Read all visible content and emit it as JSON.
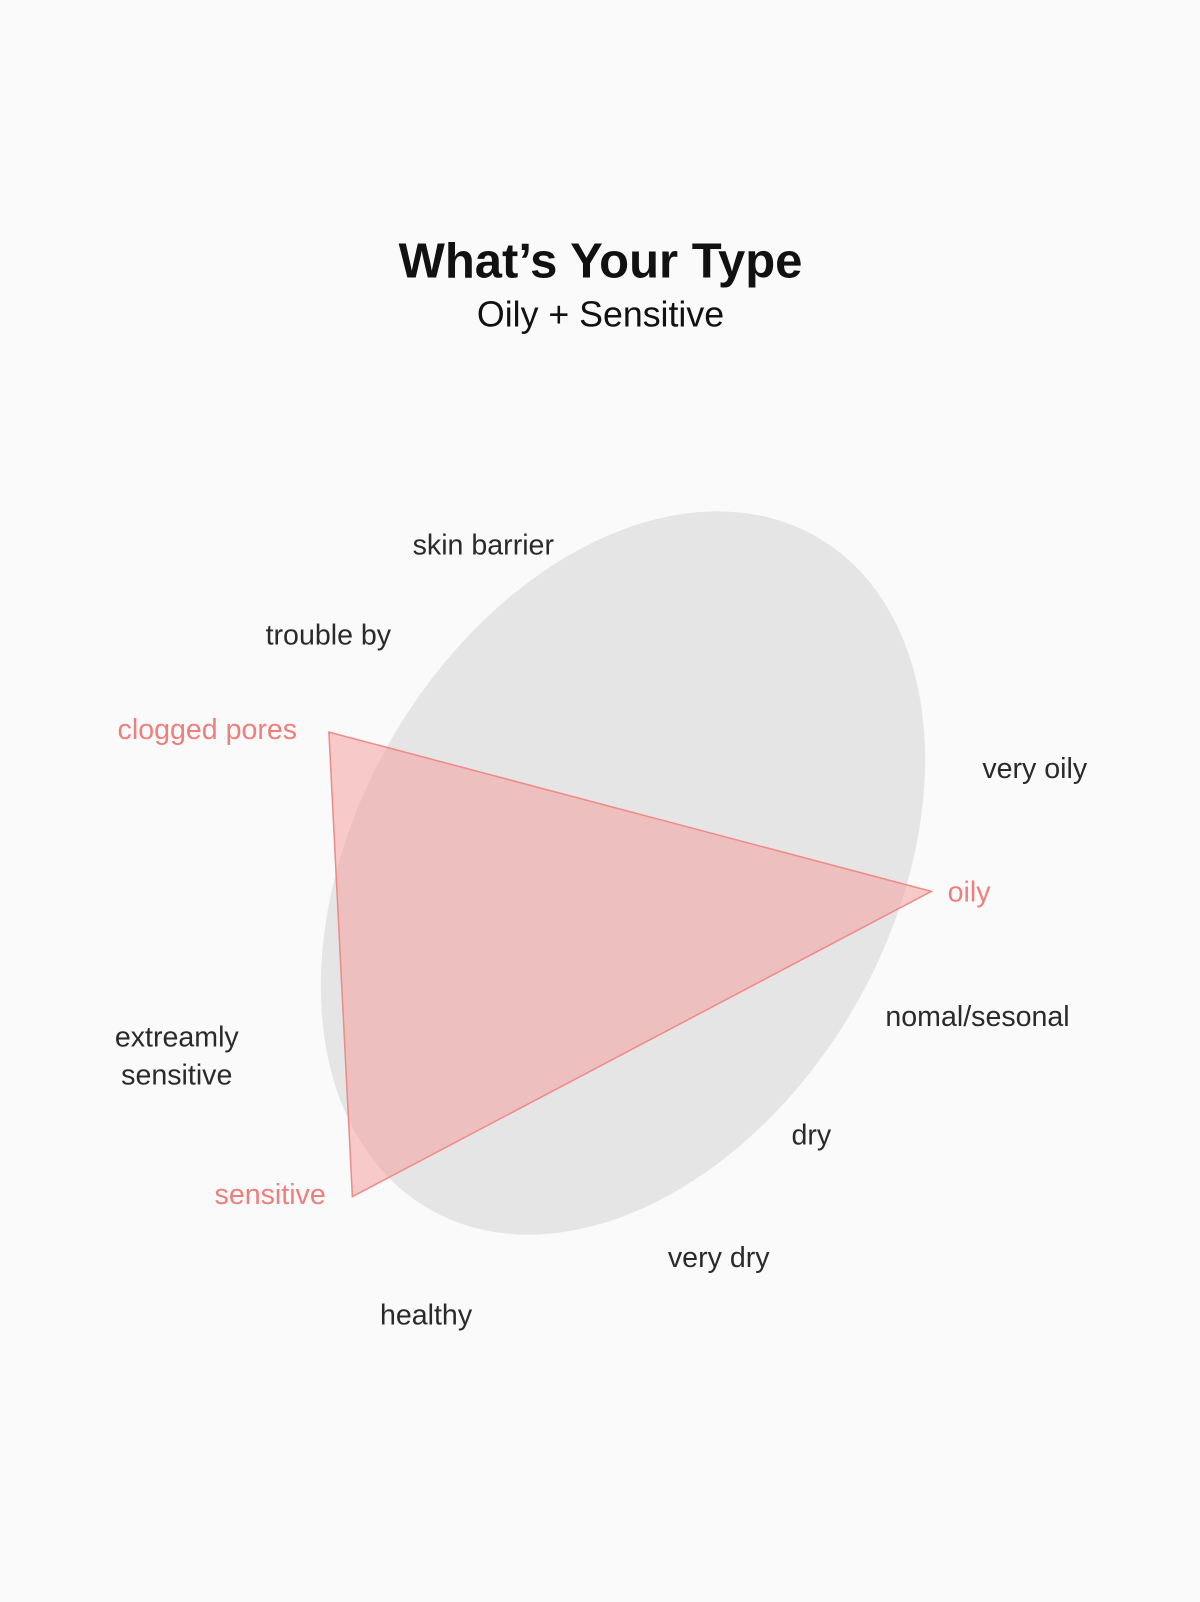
{
  "header": {
    "title": "What’s Your Type",
    "subtitle": "Oily + Sensitive"
  },
  "colors": {
    "background": "#fafafa",
    "ellipse": "#e5e5e5",
    "highlight": "#ee7f7c",
    "triangle_fill": "#f4a3a1"
  },
  "labels": {
    "skin_barrier": "skin barrier",
    "trouble_by": "trouble by",
    "clogged_pores": "clogged pores",
    "very_oily": "very oily",
    "oily": "oily",
    "normal_seasonal": "nomal/sesonal",
    "extremely_1": "extreamly",
    "extremely_2": "sensitive",
    "dry": "dry",
    "sensitive": "sensitive",
    "very_dry": "very dry",
    "healthy": "healthy"
  },
  "highlighted": [
    "clogged pores",
    "oily",
    "sensitive"
  ]
}
